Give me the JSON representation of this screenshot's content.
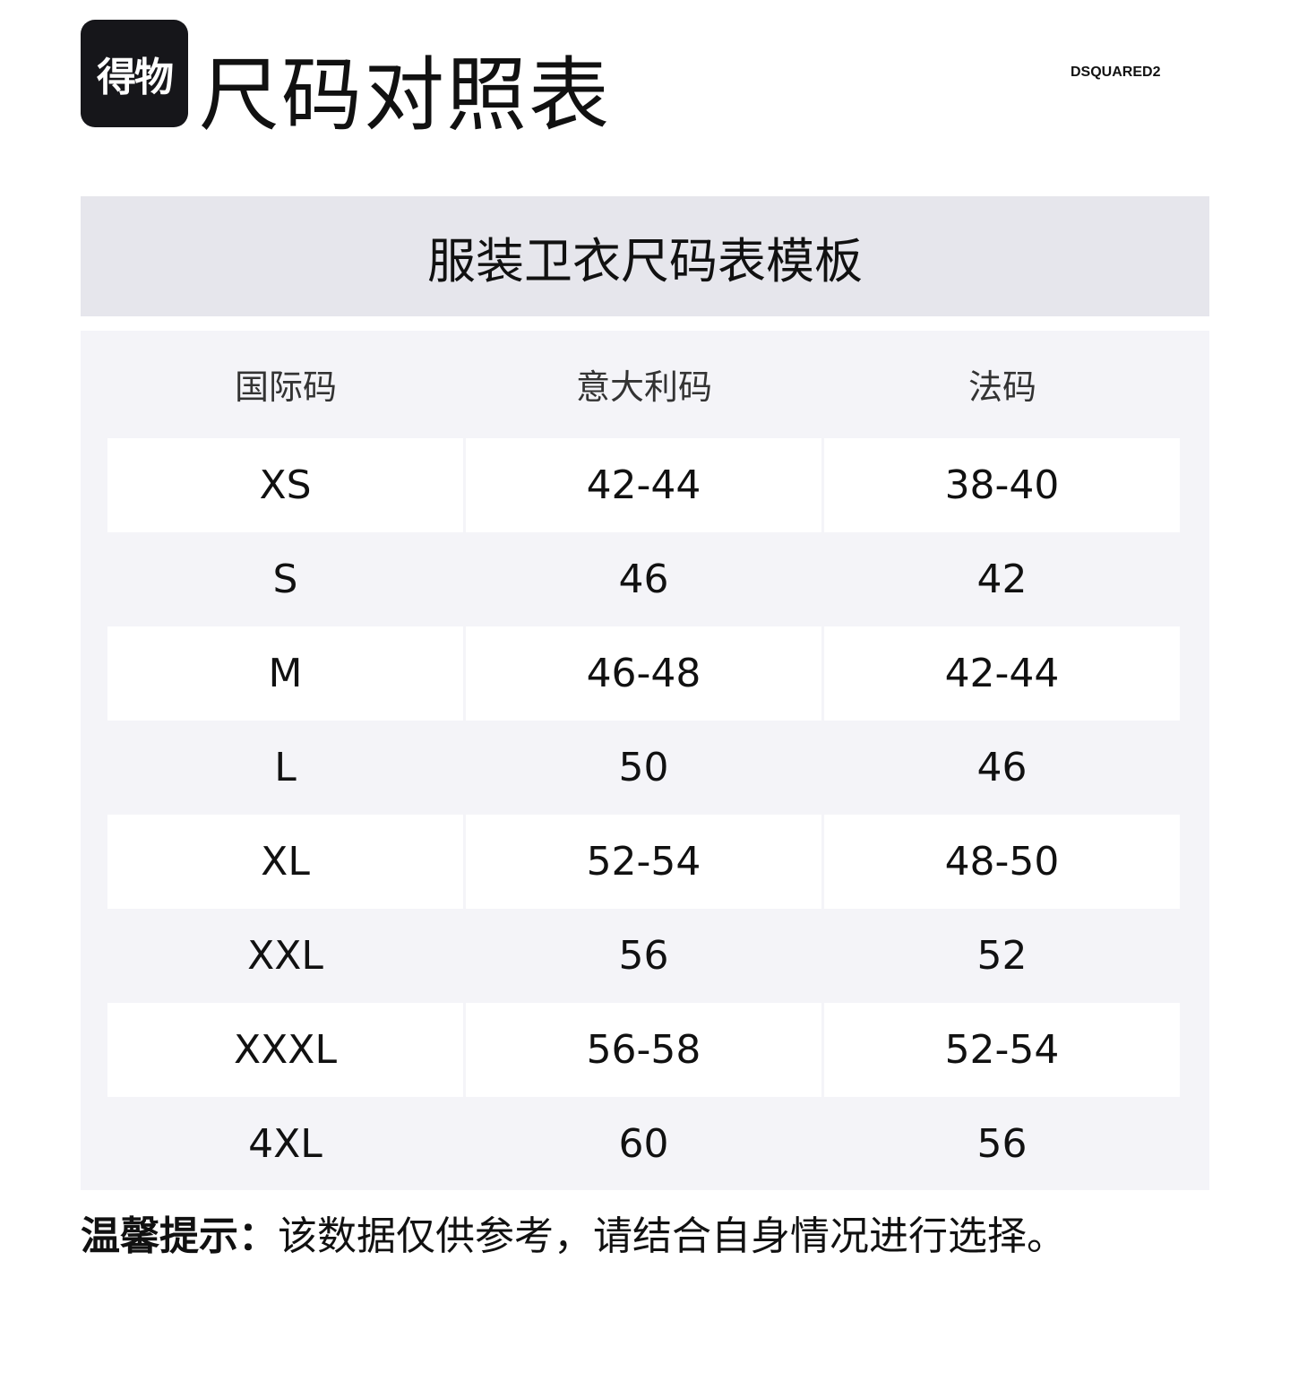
{
  "header": {
    "logo": "得物",
    "title": "尺码对照表",
    "brand": "DSQUARED2"
  },
  "banner": "服装卫衣尺码表模板",
  "table": {
    "columns": [
      "国际码",
      "意大利码",
      "法码"
    ],
    "rows": [
      [
        "XS",
        "42-44",
        "38-40"
      ],
      [
        "S",
        "46",
        "42"
      ],
      [
        "M",
        "46-48",
        "42-44"
      ],
      [
        "L",
        "50",
        "46"
      ],
      [
        "XL",
        "52-54",
        "48-50"
      ],
      [
        "XXL",
        "56",
        "52"
      ],
      [
        "XXXL",
        "56-58",
        "52-54"
      ],
      [
        "4XL",
        "60",
        "56"
      ]
    ]
  },
  "footer": {
    "label": "温馨提示：",
    "text": "该数据仅供参考，请结合自身情况进行选择。"
  }
}
